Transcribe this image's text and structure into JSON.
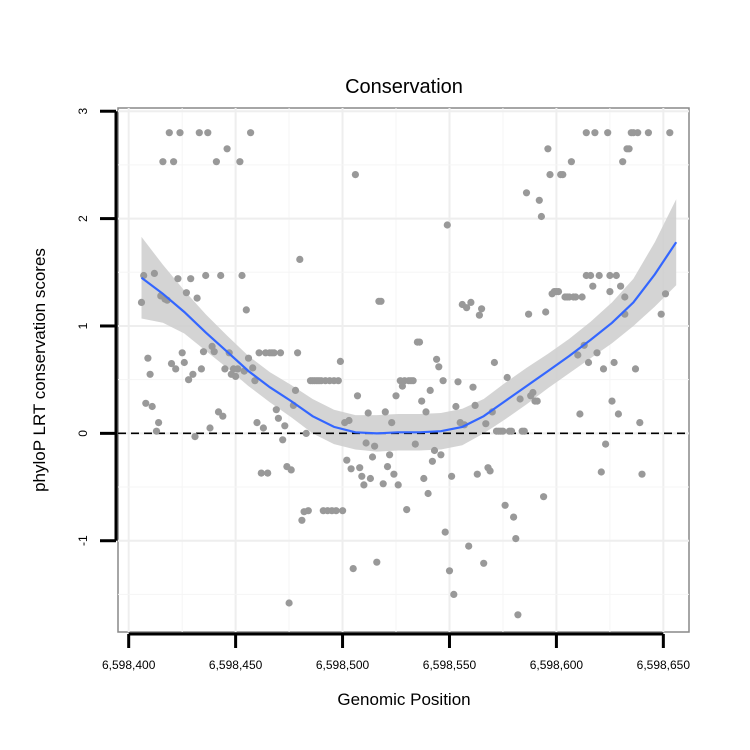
{
  "chart_data": {
    "type": "scatter",
    "title": "Conservation",
    "xlabel": "Genomic Position",
    "ylabel": "phyloP LRT conservation scores",
    "xlim": [
      6598395,
      6598662
    ],
    "ylim": [
      -1.85,
      3.03
    ],
    "x_ticks": [
      6598400,
      6598450,
      6598500,
      6598550,
      6598600,
      6598650
    ],
    "x_tick_labels": [
      "6,598,400",
      "6,598,450",
      "6,598,500",
      "6,598,550",
      "6,598,600",
      "6,598,650"
    ],
    "y_ticks": [
      -1,
      0,
      1,
      2,
      3
    ],
    "y_tick_labels": [
      "-1",
      "0",
      "1",
      "2",
      "3"
    ],
    "grid": true,
    "reference_line": {
      "y": 0,
      "style": "dashed"
    },
    "points_color": "#999999",
    "smooth_color": "#3366ff",
    "band_color": "#cccccc",
    "points": [
      [
        6598406,
        1.22
      ],
      [
        6598407,
        1.47
      ],
      [
        6598408,
        0.28
      ],
      [
        6598409,
        0.7
      ],
      [
        6598410,
        0.55
      ],
      [
        6598411,
        0.25
      ],
      [
        6598412,
        1.49
      ],
      [
        6598413,
        0.02
      ],
      [
        6598414,
        0.1
      ],
      [
        6598415,
        1.28
      ],
      [
        6598416,
        2.53
      ],
      [
        6598417,
        1.25
      ],
      [
        6598418,
        1.24
      ],
      [
        6598419,
        2.8
      ],
      [
        6598420,
        0.65
      ],
      [
        6598421,
        2.53
      ],
      [
        6598422,
        0.6
      ],
      [
        6598423,
        1.44
      ],
      [
        6598424,
        2.8
      ],
      [
        6598425,
        0.75
      ],
      [
        6598426,
        0.66
      ],
      [
        6598427,
        1.31
      ],
      [
        6598428,
        0.5
      ],
      [
        6598429,
        1.44
      ],
      [
        6598430,
        0.55
      ],
      [
        6598431,
        -0.03
      ],
      [
        6598432,
        1.26
      ],
      [
        6598433,
        2.8
      ],
      [
        6598434,
        0.6
      ],
      [
        6598435,
        0.76
      ],
      [
        6598436,
        1.47
      ],
      [
        6598437,
        2.8
      ],
      [
        6598438,
        0.05
      ],
      [
        6598439,
        0.81
      ],
      [
        6598440,
        0.76
      ],
      [
        6598441,
        2.53
      ],
      [
        6598442,
        0.2
      ],
      [
        6598443,
        1.47
      ],
      [
        6598444,
        0.16
      ],
      [
        6598445,
        0.6
      ],
      [
        6598446,
        2.65
      ],
      [
        6598447,
        0.75
      ],
      [
        6598448,
        0.55
      ],
      [
        6598449,
        0.6
      ],
      [
        6598450,
        0.53
      ],
      [
        6598451,
        0.6
      ],
      [
        6598452,
        2.53
      ],
      [
        6598453,
        1.47
      ],
      [
        6598454,
        0.58
      ],
      [
        6598455,
        1.15
      ],
      [
        6598456,
        0.7
      ],
      [
        6598457,
        2.8
      ],
      [
        6598458,
        0.61
      ],
      [
        6598459,
        0.49
      ],
      [
        6598460,
        0.1
      ],
      [
        6598461,
        0.75
      ],
      [
        6598462,
        -0.37
      ],
      [
        6598463,
        0.05
      ],
      [
        6598464,
        0.75
      ],
      [
        6598465,
        -0.37
      ],
      [
        6598466,
        0.75
      ],
      [
        6598467,
        0.75
      ],
      [
        6598468,
        0.75
      ],
      [
        6598469,
        0.22
      ],
      [
        6598470,
        0.14
      ],
      [
        6598471,
        0.75
      ],
      [
        6598472,
        -0.06
      ],
      [
        6598473,
        0.07
      ],
      [
        6598474,
        -0.31
      ],
      [
        6598475,
        -1.58
      ],
      [
        6598476,
        -0.34
      ],
      [
        6598477,
        0.26
      ],
      [
        6598478,
        0.4
      ],
      [
        6598479,
        0.75
      ],
      [
        6598480,
        1.62
      ],
      [
        6598481,
        -0.81
      ],
      [
        6598482,
        -0.73
      ],
      [
        6598483,
        0.0
      ],
      [
        6598484,
        -0.72
      ],
      [
        6598485,
        0.49
      ],
      [
        6598486,
        0.49
      ],
      [
        6598487,
        0.49
      ],
      [
        6598488,
        0.49
      ],
      [
        6598489,
        0.49
      ],
      [
        6598490,
        0.49
      ],
      [
        6598491,
        -0.72
      ],
      [
        6598492,
        0.49
      ],
      [
        6598493,
        -0.72
      ],
      [
        6598494,
        0.49
      ],
      [
        6598495,
        -0.72
      ],
      [
        6598496,
        0.49
      ],
      [
        6598497,
        -0.72
      ],
      [
        6598498,
        0.49
      ],
      [
        6598499,
        0.67
      ],
      [
        6598500,
        -0.72
      ],
      [
        6598501,
        0.1
      ],
      [
        6598502,
        -0.25
      ],
      [
        6598503,
        0.12
      ],
      [
        6598504,
        -0.33
      ],
      [
        6598505,
        -1.26
      ],
      [
        6598506,
        2.41
      ],
      [
        6598507,
        0.35
      ],
      [
        6598508,
        -0.32
      ],
      [
        6598509,
        -0.4
      ],
      [
        6598510,
        -0.48
      ],
      [
        6598511,
        -0.09
      ],
      [
        6598512,
        0.19
      ],
      [
        6598513,
        -0.42
      ],
      [
        6598514,
        -0.22
      ],
      [
        6598515,
        -0.12
      ],
      [
        6598516,
        -1.2
      ],
      [
        6598517,
        1.23
      ],
      [
        6598518,
        1.23
      ],
      [
        6598519,
        -0.47
      ],
      [
        6598520,
        0.2
      ],
      [
        6598521,
        -0.31
      ],
      [
        6598522,
        -0.2
      ],
      [
        6598523,
        0.1
      ],
      [
        6598524,
        -0.38
      ],
      [
        6598525,
        0.35
      ],
      [
        6598526,
        -0.48
      ],
      [
        6598527,
        0.49
      ],
      [
        6598528,
        0.44
      ],
      [
        6598529,
        0.49
      ],
      [
        6598530,
        -0.71
      ],
      [
        6598531,
        0.49
      ],
      [
        6598532,
        0.49
      ],
      [
        6598533,
        0.49
      ],
      [
        6598534,
        -0.1
      ],
      [
        6598535,
        0.85
      ],
      [
        6598536,
        0.85
      ],
      [
        6598537,
        0.3
      ],
      [
        6598538,
        -0.42
      ],
      [
        6598539,
        0.2
      ],
      [
        6598540,
        -0.56
      ],
      [
        6598541,
        0.4
      ],
      [
        6598542,
        -0.26
      ],
      [
        6598543,
        -0.16
      ],
      [
        6598544,
        0.69
      ],
      [
        6598545,
        0.62
      ],
      [
        6598546,
        -0.2
      ],
      [
        6598547,
        0.49
      ],
      [
        6598548,
        -0.92
      ],
      [
        6598549,
        1.94
      ],
      [
        6598550,
        -1.28
      ],
      [
        6598551,
        -0.4
      ],
      [
        6598552,
        -1.5
      ],
      [
        6598553,
        0.25
      ],
      [
        6598554,
        0.48
      ],
      [
        6598555,
        0.1
      ],
      [
        6598556,
        1.2
      ],
      [
        6598557,
        0.08
      ],
      [
        6598558,
        1.17
      ],
      [
        6598559,
        -1.05
      ],
      [
        6598560,
        1.22
      ],
      [
        6598561,
        0.43
      ],
      [
        6598562,
        0.26
      ],
      [
        6598563,
        -0.38
      ],
      [
        6598564,
        1.1
      ],
      [
        6598565,
        1.16
      ],
      [
        6598566,
        -1.21
      ],
      [
        6598567,
        0.09
      ],
      [
        6598568,
        -0.32
      ],
      [
        6598569,
        -0.35
      ],
      [
        6598570,
        0.2
      ],
      [
        6598571,
        0.66
      ],
      [
        6598572,
        0.02
      ],
      [
        6598573,
        0.02
      ],
      [
        6598574,
        0.02
      ],
      [
        6598575,
        0.02
      ],
      [
        6598576,
        -0.67
      ],
      [
        6598577,
        0.52
      ],
      [
        6598578,
        0.02
      ],
      [
        6598579,
        0.02
      ],
      [
        6598580,
        -0.78
      ],
      [
        6598581,
        -0.98
      ],
      [
        6598582,
        -1.69
      ],
      [
        6598583,
        0.32
      ],
      [
        6598584,
        0.02
      ],
      [
        6598585,
        0.02
      ],
      [
        6598586,
        2.24
      ],
      [
        6598587,
        1.11
      ],
      [
        6598588,
        0.35
      ],
      [
        6598589,
        0.38
      ],
      [
        6598590,
        0.3
      ],
      [
        6598591,
        0.3
      ],
      [
        6598592,
        2.17
      ],
      [
        6598593,
        2.02
      ],
      [
        6598594,
        -0.59
      ],
      [
        6598595,
        1.13
      ],
      [
        6598596,
        2.65
      ],
      [
        6598597,
        2.41
      ],
      [
        6598598,
        1.3
      ],
      [
        6598599,
        1.32
      ],
      [
        6598600,
        1.32
      ],
      [
        6598601,
        1.32
      ],
      [
        6598602,
        2.41
      ],
      [
        6598603,
        2.41
      ],
      [
        6598604,
        1.27
      ],
      [
        6598605,
        1.27
      ],
      [
        6598606,
        1.27
      ],
      [
        6598607,
        2.53
      ],
      [
        6598608,
        1.27
      ],
      [
        6598609,
        1.27
      ],
      [
        6598610,
        0.73
      ],
      [
        6598611,
        0.18
      ],
      [
        6598612,
        1.27
      ],
      [
        6598613,
        0.82
      ],
      [
        6598614,
        1.47
      ],
      [
        6598615,
        0.66
      ],
      [
        6598616,
        1.47
      ],
      [
        6598617,
        1.37
      ],
      [
        6598618,
        2.8
      ],
      [
        6598619,
        0.75
      ],
      [
        6598620,
        1.47
      ],
      [
        6598621,
        -0.36
      ],
      [
        6598622,
        0.6
      ],
      [
        6598623,
        -0.1
      ],
      [
        6598624,
        2.8
      ],
      [
        6598625,
        1.47
      ],
      [
        6598626,
        0.3
      ],
      [
        6598627,
        0.66
      ],
      [
        6598628,
        1.47
      ],
      [
        6598629,
        0.18
      ],
      [
        6598630,
        1.37
      ],
      [
        6598631,
        2.53
      ],
      [
        6598632,
        1.11
      ],
      [
        6598633,
        2.65
      ],
      [
        6598634,
        2.65
      ],
      [
        6598635,
        2.8
      ],
      [
        6598636,
        2.8
      ],
      [
        6598637,
        0.6
      ],
      [
        6598638,
        2.8
      ],
      [
        6598639,
        0.1
      ],
      [
        6598640,
        -0.38
      ],
      [
        6598632,
        1.27
      ],
      [
        6598625,
        1.32
      ],
      [
        6598614,
        2.8
      ],
      [
        6598643,
        2.8
      ],
      [
        6598653,
        2.8
      ],
      [
        6598651,
        1.3
      ],
      [
        6598649,
        1.11
      ]
    ],
    "smooth": {
      "x": [
        6598406,
        6598416,
        6598426,
        6598436,
        6598446,
        6598456,
        6598466,
        6598476,
        6598486,
        6598496,
        6598506,
        6598516,
        6598526,
        6598536,
        6598546,
        6598556,
        6598566,
        6598576,
        6598586,
        6598596,
        6598606,
        6598616,
        6598626,
        6598636,
        6598646,
        6598656
      ],
      "y": [
        1.45,
        1.3,
        1.13,
        0.94,
        0.76,
        0.58,
        0.43,
        0.3,
        0.16,
        0.06,
        0.01,
        0.0,
        0.01,
        0.01,
        0.02,
        0.06,
        0.16,
        0.3,
        0.44,
        0.58,
        0.72,
        0.87,
        1.03,
        1.22,
        1.48,
        1.78
      ],
      "lower": [
        1.07,
        1.03,
        0.93,
        0.77,
        0.61,
        0.44,
        0.29,
        0.15,
        0.0,
        -0.1,
        -0.15,
        -0.17,
        -0.16,
        -0.16,
        -0.15,
        -0.11,
        0.0,
        0.13,
        0.27,
        0.42,
        0.56,
        0.7,
        0.84,
        1.0,
        1.18,
        1.38
      ],
      "upper": [
        1.83,
        1.57,
        1.33,
        1.11,
        0.91,
        0.72,
        0.57,
        0.45,
        0.32,
        0.22,
        0.17,
        0.17,
        0.18,
        0.18,
        0.19,
        0.23,
        0.32,
        0.47,
        0.61,
        0.74,
        0.88,
        1.04,
        1.22,
        1.44,
        1.78,
        2.18
      ]
    }
  }
}
